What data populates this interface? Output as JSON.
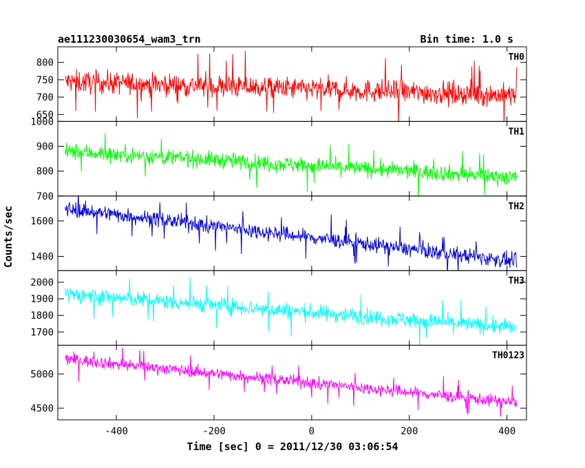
{
  "header": {
    "title": "ae111230030654_wam3_trn",
    "bin_time": "Bin time: 1.0 s"
  },
  "chart_data": {
    "type": "line",
    "xlabel": "Time [sec] 0 = 2011/12/30 03:06:54",
    "ylabel": "Counts/sec",
    "xlim": [
      -520,
      440
    ],
    "x_ticks": [
      -400,
      -200,
      0,
      200,
      400
    ],
    "x_range_data": [
      -505,
      420
    ],
    "bin_seconds": 1.0,
    "grid": false,
    "panels": [
      {
        "name": "TH0",
        "color": "#ff0000",
        "ylim": [
          630,
          845
        ],
        "y_ticks": [
          650,
          700,
          750,
          800
        ],
        "trend": [
          745,
          705
        ],
        "noise": 32
      },
      {
        "name": "TH1",
        "color": "#00ff00",
        "ylim": [
          700,
          1000
        ],
        "y_ticks": [
          700,
          800,
          900,
          1000
        ],
        "trend": [
          880,
          775
        ],
        "noise": 32
      },
      {
        "name": "TH2",
        "color": "#0000dd",
        "ylim": [
          1320,
          1740
        ],
        "y_ticks": [
          1400,
          1600
        ],
        "trend": [
          1670,
          1370
        ],
        "noise": 42
      },
      {
        "name": "TH3",
        "color": "#00ffff",
        "ylim": [
          1620,
          2070
        ],
        "y_ticks": [
          1700,
          1800,
          1900,
          2000
        ],
        "trend": [
          1930,
          1725
        ],
        "noise": 48
      },
      {
        "name": "TH0123",
        "color": "#ff00ff",
        "ylim": [
          4330,
          5420
        ],
        "y_ticks": [
          4500,
          5000
        ],
        "trend": [
          5220,
          4580
        ],
        "noise": 85
      }
    ]
  }
}
